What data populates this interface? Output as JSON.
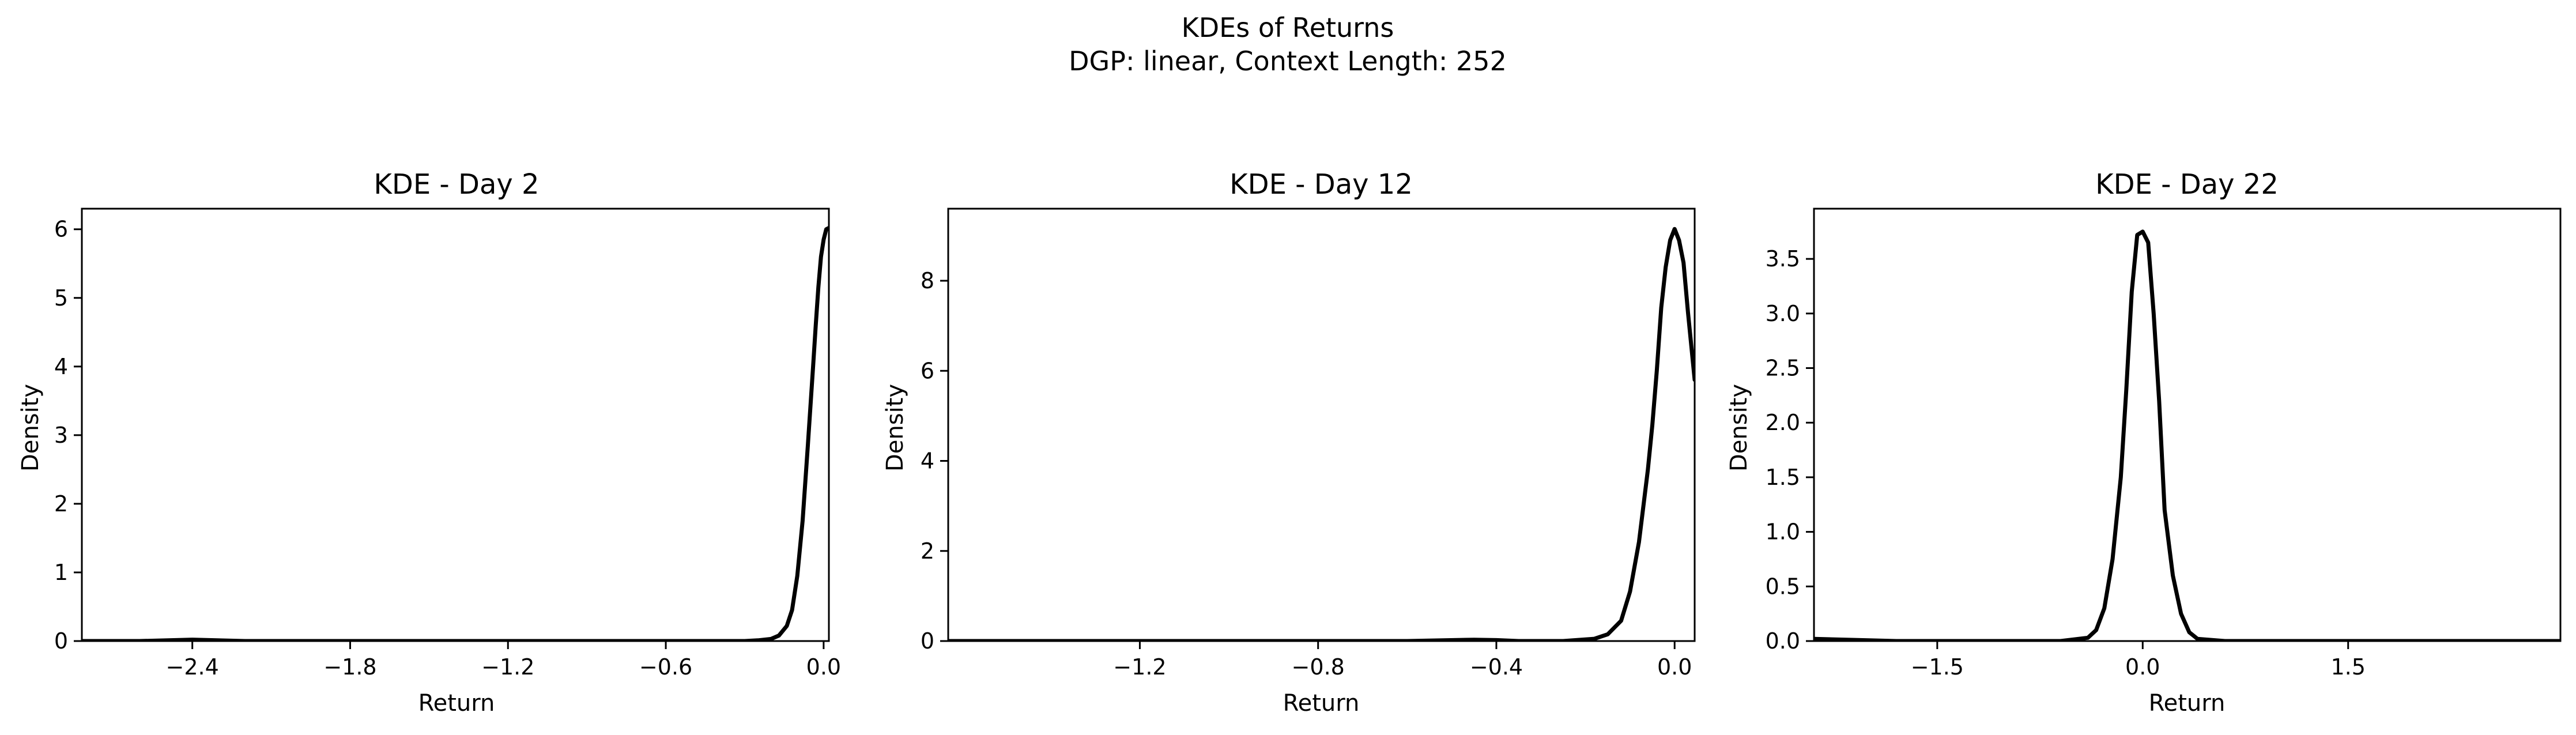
{
  "figure": {
    "title_line1": "KDEs of Returns",
    "title_line2": "DGP: linear, Context Length: 252"
  },
  "chart_data": [
    {
      "type": "line",
      "title": "KDE - Day 2",
      "xlabel": "Return",
      "ylabel": "Density",
      "xlim": [
        -2.82,
        0.02
      ],
      "ylim": [
        0,
        6.3
      ],
      "xticks": [
        -2.4,
        -1.8,
        -1.2,
        -0.6,
        0.0
      ],
      "xtick_labels": [
        "−2.4",
        "−1.8",
        "−1.2",
        "−0.6",
        "0.0"
      ],
      "yticks": [
        0,
        1,
        2,
        3,
        4,
        5,
        6
      ],
      "ytick_labels": [
        "0",
        "1",
        "2",
        "3",
        "4",
        "5",
        "6"
      ],
      "grid": false,
      "color": "#000000",
      "series": [
        {
          "x": [
            -2.82,
            -2.6,
            -2.4,
            -2.2,
            -1.8,
            -1.2,
            -0.6,
            -0.4,
            -0.3,
            -0.25,
            -0.2,
            -0.17,
            -0.14,
            -0.12,
            -0.1,
            -0.08,
            -0.06,
            -0.04,
            -0.03,
            -0.02,
            -0.01,
            0.0,
            0.01,
            0.02
          ],
          "y": [
            0.0,
            0.0,
            0.02,
            0.0,
            0.0,
            0.0,
            0.0,
            0.0,
            0.0,
            0.01,
            0.03,
            0.08,
            0.22,
            0.45,
            0.95,
            1.75,
            2.85,
            4.0,
            4.6,
            5.15,
            5.6,
            5.85,
            6.0,
            6.02
          ]
        }
      ]
    },
    {
      "type": "line",
      "title": "KDE - Day 12",
      "xlabel": "Return",
      "ylabel": "Density",
      "xlim": [
        -1.63,
        0.045
      ],
      "ylim": [
        0,
        9.6
      ],
      "xticks": [
        -1.2,
        -0.8,
        -0.4,
        0.0
      ],
      "xtick_labels": [
        "−1.2",
        "−0.8",
        "−0.4",
        "0.0"
      ],
      "yticks": [
        0,
        2,
        4,
        6,
        8
      ],
      "ytick_labels": [
        "0",
        "2",
        "4",
        "6",
        "8"
      ],
      "grid": false,
      "color": "#000000",
      "series": [
        {
          "x": [
            -1.63,
            -1.2,
            -0.8,
            -0.6,
            -0.45,
            -0.4,
            -0.35,
            -0.25,
            -0.18,
            -0.15,
            -0.12,
            -0.1,
            -0.08,
            -0.06,
            -0.05,
            -0.04,
            -0.03,
            -0.02,
            -0.01,
            0.0,
            0.01,
            0.02,
            0.03,
            0.045
          ],
          "y": [
            0.0,
            0.0,
            0.0,
            0.0,
            0.03,
            0.02,
            0.0,
            0.0,
            0.05,
            0.15,
            0.45,
            1.1,
            2.2,
            3.8,
            4.8,
            6.0,
            7.4,
            8.3,
            8.9,
            9.15,
            8.9,
            8.4,
            7.3,
            5.8
          ]
        }
      ]
    },
    {
      "type": "line",
      "title": "KDE - Day 22",
      "xlabel": "Return",
      "ylabel": "Density",
      "xlim": [
        -2.4,
        3.05
      ],
      "ylim": [
        0,
        3.96
      ],
      "xticks": [
        -1.5,
        0.0,
        1.5
      ],
      "xtick_labels": [
        "−1.5",
        "0.0",
        "1.5"
      ],
      "yticks": [
        0.0,
        0.5,
        1.0,
        1.5,
        2.0,
        2.5,
        3.0,
        3.5
      ],
      "ytick_labels": [
        "0.0",
        "0.5",
        "1.0",
        "1.5",
        "2.0",
        "2.5",
        "3.0",
        "3.5"
      ],
      "grid": false,
      "color": "#000000",
      "series": [
        {
          "x": [
            -2.4,
            -2.1,
            -1.8,
            -1.5,
            -1.0,
            -0.6,
            -0.4,
            -0.34,
            -0.28,
            -0.22,
            -0.16,
            -0.12,
            -0.08,
            -0.04,
            0.0,
            0.04,
            0.08,
            0.12,
            0.16,
            0.22,
            0.28,
            0.34,
            0.4,
            0.6,
            1.0,
            1.5,
            2.0,
            2.5,
            3.05
          ],
          "y": [
            0.02,
            0.01,
            0.0,
            0.0,
            0.0,
            0.0,
            0.03,
            0.1,
            0.3,
            0.75,
            1.5,
            2.3,
            3.2,
            3.72,
            3.75,
            3.65,
            3.0,
            2.2,
            1.2,
            0.6,
            0.25,
            0.08,
            0.02,
            0.0,
            0.0,
            0.0,
            0.0,
            0.0,
            0.0
          ]
        }
      ]
    }
  ]
}
